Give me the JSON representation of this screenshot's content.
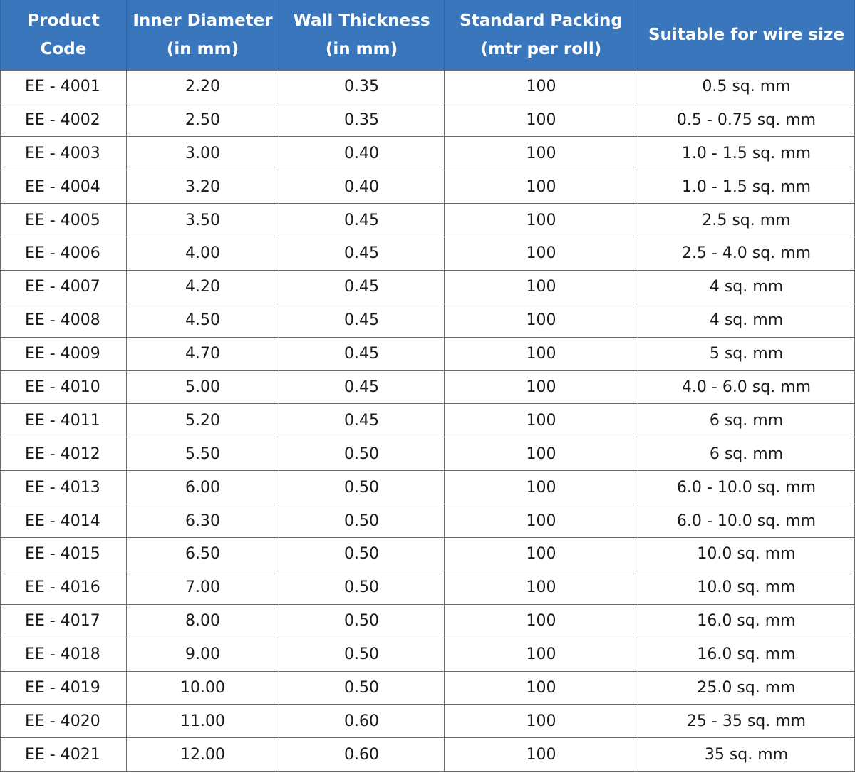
{
  "table": {
    "headers": [
      "Product\nCode",
      "Inner Diameter\n(in mm)",
      "Wall Thickness\n(in mm)",
      "Standard Packing\n(mtr per roll)",
      "Suitable for wire size"
    ],
    "rows": [
      [
        "EE - 4001",
        "2.20",
        "0.35",
        "100",
        "0.5 sq. mm"
      ],
      [
        "EE - 4002",
        "2.50",
        "0.35",
        "100",
        "0.5 - 0.75 sq. mm"
      ],
      [
        "EE - 4003",
        "3.00",
        "0.40",
        "100",
        "1.0 - 1.5 sq. mm"
      ],
      [
        "EE - 4004",
        "3.20",
        "0.40",
        "100",
        "1.0 - 1.5 sq. mm"
      ],
      [
        "EE - 4005",
        "3.50",
        "0.45",
        "100",
        "2.5 sq. mm"
      ],
      [
        "EE - 4006",
        "4.00",
        "0.45",
        "100",
        "2.5 - 4.0 sq. mm"
      ],
      [
        "EE - 4007",
        "4.20",
        "0.45",
        "100",
        "4 sq. mm"
      ],
      [
        "EE - 4008",
        "4.50",
        "0.45",
        "100",
        "4 sq. mm"
      ],
      [
        "EE - 4009",
        "4.70",
        "0.45",
        "100",
        "5 sq. mm"
      ],
      [
        "EE - 4010",
        "5.00",
        "0.45",
        "100",
        "4.0 - 6.0 sq. mm"
      ],
      [
        "EE - 4011",
        "5.20",
        "0.45",
        "100",
        "6 sq. mm"
      ],
      [
        "EE - 4012",
        "5.50",
        "0.50",
        "100",
        "6 sq. mm"
      ],
      [
        "EE - 4013",
        "6.00",
        "0.50",
        "100",
        "6.0 - 10.0 sq. mm"
      ],
      [
        "EE - 4014",
        "6.30",
        "0.50",
        "100",
        "6.0 - 10.0 sq. mm"
      ],
      [
        "EE - 4015",
        "6.50",
        "0.50",
        "100",
        "10.0 sq. mm"
      ],
      [
        "EE - 4016",
        "7.00",
        "0.50",
        "100",
        "10.0 sq. mm"
      ],
      [
        "EE - 4017",
        "8.00",
        "0.50",
        "100",
        "16.0 sq. mm"
      ],
      [
        "EE - 4018",
        "9.00",
        "0.50",
        "100",
        "16.0 sq. mm"
      ],
      [
        "EE - 4019",
        "10.00",
        "0.50",
        "100",
        "25.0 sq. mm"
      ],
      [
        "EE - 4020",
        "11.00",
        "0.60",
        "100",
        "25 - 35 sq. mm"
      ],
      [
        "EE - 4021",
        "12.00",
        "0.60",
        "100",
        "35 sq. mm"
      ]
    ]
  },
  "colors": {
    "header_background": "#3a76bc",
    "header_text": "#ffffff",
    "body_text": "#1a1a1a",
    "grid_line": "#6b6b6b"
  }
}
